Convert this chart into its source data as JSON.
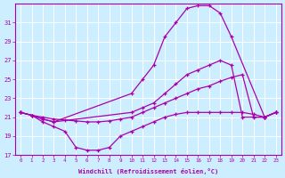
{
  "xlabel": "Windchill (Refroidissement éolien,°C)",
  "ylabel": "",
  "background_color": "#cceeff",
  "grid_color": "#aaddcc",
  "line_color": "#aa00aa",
  "xlim": [
    -0.5,
    23.5
  ],
  "ylim": [
    17,
    33
  ],
  "yticks": [
    17,
    19,
    21,
    23,
    25,
    27,
    29,
    31
  ],
  "xticks": [
    0,
    1,
    2,
    3,
    4,
    5,
    6,
    7,
    8,
    9,
    10,
    11,
    12,
    13,
    14,
    15,
    16,
    17,
    18,
    19,
    20,
    21,
    22,
    23
  ],
  "series": [
    {
      "x": [
        0,
        1,
        2,
        3,
        10,
        11,
        12,
        13,
        14,
        15,
        16,
        17,
        18,
        19,
        22,
        23
      ],
      "y": [
        21.5,
        21.2,
        20.8,
        20.5,
        23.5,
        25.0,
        26.5,
        29.5,
        31.0,
        32.5,
        32.8,
        32.8,
        32.0,
        29.5,
        21.0,
        21.5
      ]
    },
    {
      "x": [
        0,
        1,
        2,
        3,
        10,
        11,
        12,
        13,
        14,
        15,
        16,
        17,
        18,
        19,
        20,
        22,
        23
      ],
      "y": [
        21.5,
        21.2,
        20.8,
        20.5,
        21.5,
        22.0,
        22.5,
        23.5,
        24.5,
        25.5,
        26.0,
        26.5,
        27.0,
        26.5,
        21.0,
        21.0,
        21.5
      ]
    },
    {
      "x": [
        0,
        1,
        2,
        3,
        4,
        5,
        6,
        7,
        8,
        9,
        10,
        11,
        12,
        13,
        14,
        15,
        16,
        17,
        18,
        19,
        20,
        21,
        22,
        23
      ],
      "y": [
        21.5,
        21.2,
        21.0,
        20.8,
        20.7,
        20.6,
        20.5,
        20.5,
        20.6,
        20.8,
        21.0,
        21.5,
        22.0,
        22.5,
        23.0,
        23.5,
        24.0,
        24.3,
        24.8,
        25.2,
        25.5,
        21.0,
        21.0,
        21.5
      ]
    },
    {
      "x": [
        0,
        1,
        2,
        3,
        4,
        5,
        6,
        7,
        8,
        9,
        10,
        11,
        12,
        13,
        14,
        15,
        16,
        17,
        18,
        19,
        20,
        21,
        22,
        23
      ],
      "y": [
        21.5,
        21.2,
        20.5,
        20.0,
        19.5,
        17.8,
        17.5,
        17.5,
        17.8,
        19.0,
        19.5,
        20.0,
        20.5,
        21.0,
        21.3,
        21.5,
        21.5,
        21.5,
        21.5,
        21.5,
        21.5,
        21.3,
        21.0,
        21.5
      ]
    }
  ]
}
